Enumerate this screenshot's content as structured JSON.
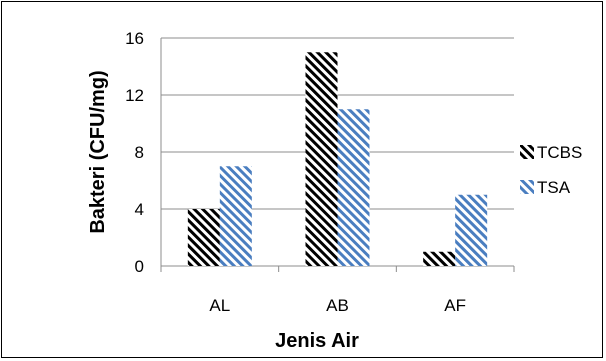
{
  "chart_data": {
    "type": "bar",
    "title": "",
    "xlabel": "Jenis Air",
    "ylabel": "Bakteri (CFU/mg)",
    "categories": [
      "AL",
      "AB",
      "AF"
    ],
    "series": [
      {
        "name": "TCBS",
        "values": [
          4,
          15,
          1
        ],
        "color": "#000000",
        "pattern": "diagonal-stripes"
      },
      {
        "name": "TSA",
        "values": [
          7,
          11,
          5
        ],
        "color": "#4a7ec0",
        "pattern": "diagonal-stripes"
      }
    ],
    "ylim": [
      0,
      16
    ],
    "yticks": [
      0,
      4,
      8,
      12,
      16
    ],
    "grid": true,
    "legend": "right"
  }
}
